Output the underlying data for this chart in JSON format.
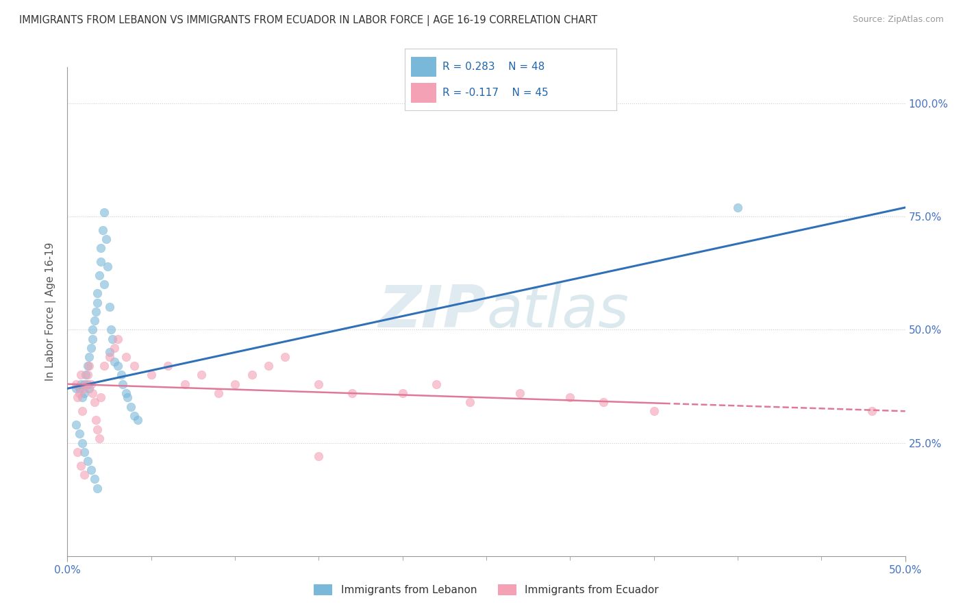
{
  "title": "IMMIGRANTS FROM LEBANON VS IMMIGRANTS FROM ECUADOR IN LABOR FORCE | AGE 16-19 CORRELATION CHART",
  "source": "Source: ZipAtlas.com",
  "ylabel": "In Labor Force | Age 16-19",
  "xlim": [
    0.0,
    0.5
  ],
  "ylim": [
    0.0,
    1.08
  ],
  "lebanon_color": "#7ab8d9",
  "ecuador_color": "#f4a0b5",
  "lebanon_R": 0.283,
  "lebanon_N": 48,
  "ecuador_R": -0.117,
  "ecuador_N": 45,
  "lebanon_line_color": "#3070b8",
  "ecuador_line_color": "#e07898",
  "legend_label_lebanon": "Immigrants from Lebanon",
  "legend_label_ecuador": "Immigrants from Ecuador",
  "leb_x": [
    0.005,
    0.007,
    0.008,
    0.009,
    0.01,
    0.01,
    0.011,
    0.012,
    0.012,
    0.013,
    0.013,
    0.014,
    0.015,
    0.015,
    0.016,
    0.017,
    0.018,
    0.018,
    0.019,
    0.02,
    0.02,
    0.021,
    0.022,
    0.022,
    0.023,
    0.024,
    0.025,
    0.025,
    0.026,
    0.027,
    0.028,
    0.03,
    0.032,
    0.033,
    0.035,
    0.036,
    0.038,
    0.04,
    0.042,
    0.005,
    0.007,
    0.009,
    0.01,
    0.012,
    0.014,
    0.016,
    0.4,
    0.018
  ],
  "leb_y": [
    0.37,
    0.37,
    0.38,
    0.35,
    0.36,
    0.38,
    0.4,
    0.42,
    0.38,
    0.44,
    0.37,
    0.46,
    0.48,
    0.5,
    0.52,
    0.54,
    0.56,
    0.58,
    0.62,
    0.65,
    0.68,
    0.72,
    0.76,
    0.6,
    0.7,
    0.64,
    0.55,
    0.45,
    0.5,
    0.48,
    0.43,
    0.42,
    0.4,
    0.38,
    0.36,
    0.35,
    0.33,
    0.31,
    0.3,
    0.29,
    0.27,
    0.25,
    0.23,
    0.21,
    0.19,
    0.17,
    0.77,
    0.15
  ],
  "ecu_x": [
    0.005,
    0.006,
    0.007,
    0.008,
    0.009,
    0.01,
    0.011,
    0.012,
    0.013,
    0.014,
    0.015,
    0.016,
    0.017,
    0.018,
    0.019,
    0.02,
    0.022,
    0.025,
    0.028,
    0.03,
    0.035,
    0.04,
    0.05,
    0.06,
    0.07,
    0.08,
    0.09,
    0.1,
    0.11,
    0.12,
    0.13,
    0.15,
    0.17,
    0.2,
    0.22,
    0.24,
    0.27,
    0.3,
    0.32,
    0.35,
    0.006,
    0.008,
    0.01,
    0.48,
    0.15
  ],
  "ecu_y": [
    0.38,
    0.35,
    0.36,
    0.4,
    0.32,
    0.37,
    0.38,
    0.4,
    0.42,
    0.38,
    0.36,
    0.34,
    0.3,
    0.28,
    0.26,
    0.35,
    0.42,
    0.44,
    0.46,
    0.48,
    0.44,
    0.42,
    0.4,
    0.42,
    0.38,
    0.4,
    0.36,
    0.38,
    0.4,
    0.42,
    0.44,
    0.38,
    0.36,
    0.36,
    0.38,
    0.34,
    0.36,
    0.35,
    0.34,
    0.32,
    0.23,
    0.2,
    0.18,
    0.32,
    0.22
  ]
}
